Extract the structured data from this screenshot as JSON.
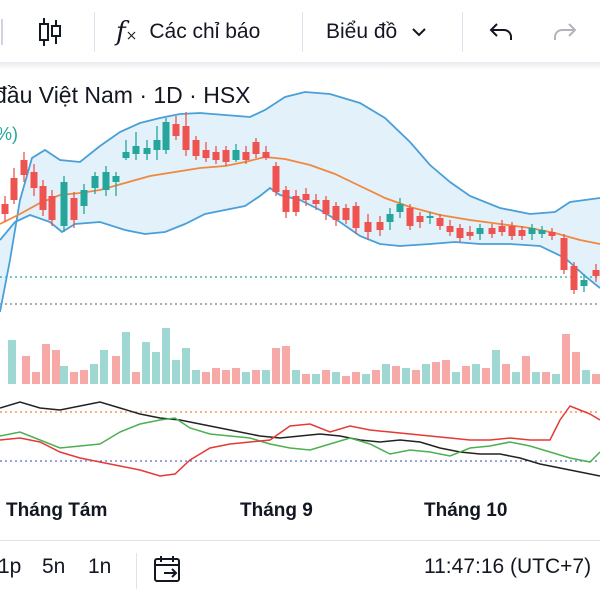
{
  "toolbar": {
    "indicators_label": "Các chỉ báo",
    "chart_type_label": "Biểu đồ",
    "icons": [
      "candles-icon",
      "function-fx-icon",
      "chevron-down-icon",
      "undo-icon",
      "redo-icon"
    ]
  },
  "chart": {
    "title": "đầu Việt Nam · 1D · HSX",
    "pct_label": "%)",
    "x_labels": [
      "Tháng Tám",
      "Tháng 9",
      "Tháng 10"
    ],
    "colors": {
      "up": "#26a69a",
      "down": "#ef5350",
      "up_volume": "#9fd8d2",
      "down_volume": "#f7a9a7",
      "bollinger_band": "#4a9fd8",
      "bollinger_fill": "#e3f1fb",
      "basis": "#f0883e",
      "stoch_k": "#4caf50",
      "stoch_d": "#e53935",
      "black_line": "#222222"
    }
  },
  "bottom": {
    "intervals": [
      "1p",
      "5n",
      "1n"
    ],
    "time": "11:47:16 (UTC+7)"
  }
}
